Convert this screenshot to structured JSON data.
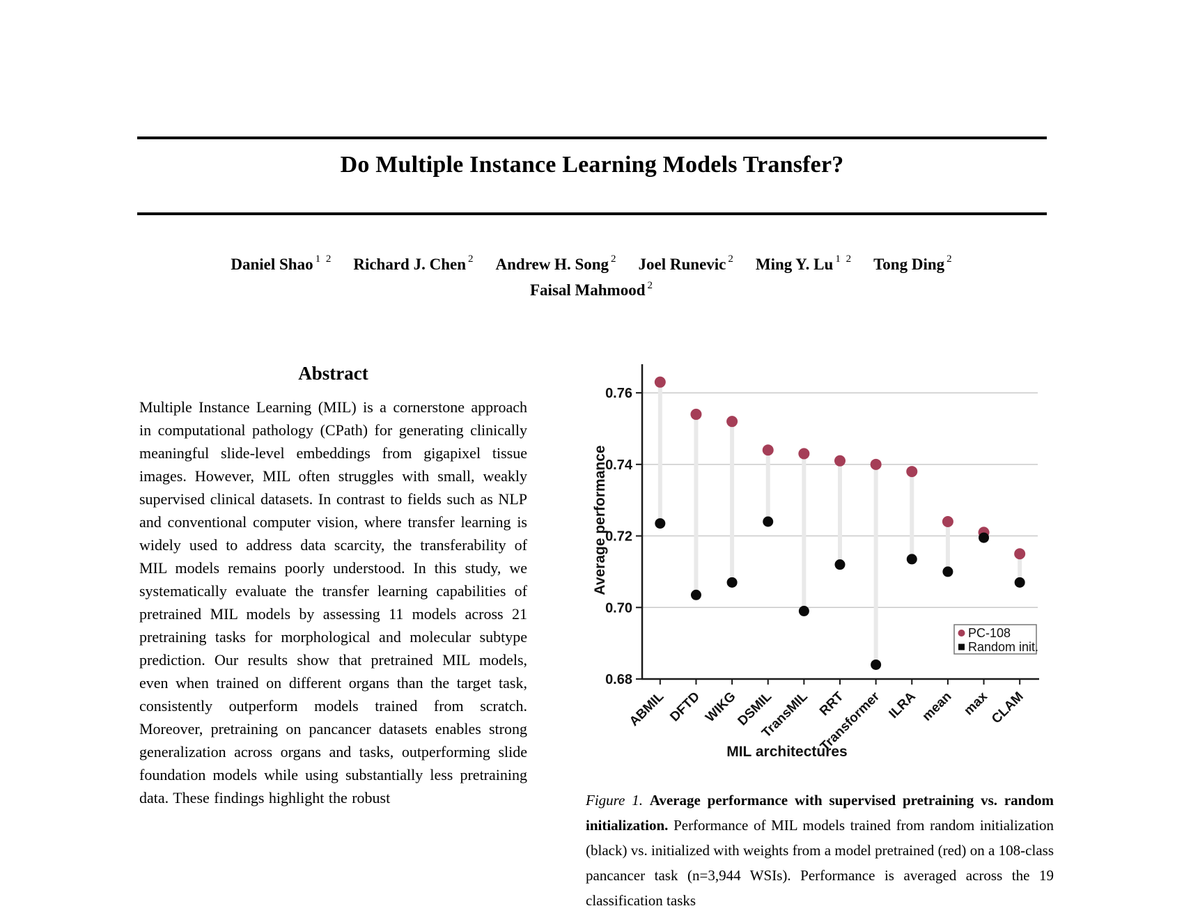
{
  "page": {
    "title": "Do Multiple Instance Learning Models Transfer?",
    "authors": {
      "line1": [
        {
          "name": "Daniel Shao",
          "sup": "1 2"
        },
        {
          "name": "Richard J. Chen",
          "sup": "2"
        },
        {
          "name": "Andrew H. Song",
          "sup": "2"
        },
        {
          "name": "Joel Runevic",
          "sup": "2"
        },
        {
          "name": "Ming Y. Lu",
          "sup": "1 2"
        },
        {
          "name": "Tong Ding",
          "sup": "2"
        }
      ],
      "line2": [
        {
          "name": "Faisal Mahmood",
          "sup": "2"
        }
      ]
    },
    "abstract": {
      "heading": "Abstract",
      "text": "Multiple Instance Learning (MIL) is a cornerstone approach in computational pathology (CPath) for generating clinically meaningful slide-level embeddings from gigapixel tissue images. However, MIL often struggles with small, weakly supervised clinical datasets. In contrast to fields such as NLP and conventional computer vision, where transfer learning is widely used to address data scarcity, the transferability of MIL models remains poorly understood. In this study, we systematically evaluate the transfer learning capabilities of pretrained MIL models by assessing 11 models across 21 pretraining tasks for morphological and molecular subtype prediction. Our results show that pretrained MIL models, even when trained on different organs than the target task, consistently outperform models trained from scratch. Moreover, pretraining on pancancer datasets enables strong generalization across organs and tasks, outperforming slide foundation models while using substantially less pretraining data. These findings highlight the robust"
    },
    "figure_caption": {
      "label": "Figure 1.",
      "bold": "Average performance with supervised pretraining vs. random initialization.",
      "text": "Performance of MIL models trained from random initialization (black) vs. initialized with weights from a model pretrained (red) on a 108-class pancancer task (n=3,944 WSIs). Performance is averaged across the 19 classification tasks"
    }
  },
  "chart_data": {
    "type": "scatter",
    "subtype": "dumbbell",
    "title": "",
    "xlabel": "MIL architectures",
    "ylabel": "Average performance",
    "categories": [
      "ABMIL",
      "DFTD",
      "WIKG",
      "DSMIL",
      "TransMIL",
      "RRT",
      "Transformer",
      "ILRA",
      "mean",
      "max",
      "CLAM"
    ],
    "series": [
      {
        "name": "PC-108",
        "marker": "circle",
        "legend_marker": "circle",
        "color": "#A53E57",
        "values": [
          0.763,
          0.754,
          0.752,
          0.744,
          0.743,
          0.741,
          0.74,
          0.738,
          0.724,
          0.721,
          0.715
        ]
      },
      {
        "name": "Random init.",
        "marker": "circle",
        "legend_marker": "square",
        "color": "#0a0a0a",
        "values": [
          0.7235,
          0.7035,
          0.707,
          0.724,
          0.699,
          0.712,
          0.684,
          0.7135,
          0.71,
          0.7195,
          0.707
        ]
      }
    ],
    "yticks": [
      0.68,
      0.7,
      0.72,
      0.74,
      0.76
    ],
    "ylim": [
      0.68,
      0.768
    ],
    "grid": "horizontal",
    "legend_position": "lower-right",
    "connector_color": "#e9e9e9",
    "grid_color": "#c9c9c9",
    "spine_color": "#1a1a1a"
  }
}
